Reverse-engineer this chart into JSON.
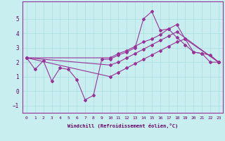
{
  "xlabel": "Windchill (Refroidissement éolien,°C)",
  "bg_color": "#c8eef0",
  "line_color": "#993399",
  "grid_color": "#aadddd",
  "xlim": [
    -0.5,
    23.5
  ],
  "ylim": [
    -1.5,
    6.2
  ],
  "yticks": [
    -1,
    0,
    1,
    2,
    3,
    4,
    5
  ],
  "xticks": [
    0,
    1,
    2,
    3,
    4,
    5,
    6,
    7,
    8,
    9,
    10,
    11,
    12,
    13,
    14,
    15,
    16,
    17,
    18,
    19,
    20,
    21,
    22,
    23
  ],
  "series_main_x": [
    0,
    1,
    2,
    3,
    4,
    5,
    6,
    7,
    8,
    9,
    10,
    11,
    12,
    13,
    14,
    15,
    16,
    17,
    18,
    19,
    20,
    21,
    22,
    23
  ],
  "series_main_y": [
    2.3,
    1.5,
    2.1,
    0.7,
    1.6,
    1.5,
    0.8,
    -0.6,
    -0.3,
    2.2,
    2.2,
    2.5,
    2.7,
    3.0,
    5.0,
    5.5,
    4.2,
    4.3,
    3.7,
    3.2,
    2.7,
    2.6,
    2.0,
    2.0
  ],
  "series_low_x": [
    0,
    10,
    11,
    12,
    13,
    14,
    15,
    16,
    17,
    18,
    19,
    23
  ],
  "series_low_y": [
    2.3,
    1.0,
    1.3,
    1.6,
    1.9,
    2.2,
    2.5,
    2.8,
    3.1,
    3.4,
    3.6,
    2.0
  ],
  "series_mid_x": [
    0,
    10,
    11,
    12,
    13,
    14,
    15,
    16,
    17,
    18,
    23
  ],
  "series_mid_y": [
    2.3,
    1.8,
    2.0,
    2.3,
    2.6,
    2.9,
    3.2,
    3.5,
    3.8,
    4.1,
    2.0
  ],
  "series_high_x": [
    0,
    10,
    11,
    12,
    13,
    14,
    15,
    16,
    17,
    18,
    19,
    20,
    21,
    22,
    23
  ],
  "series_high_y": [
    2.3,
    2.3,
    2.6,
    2.8,
    3.1,
    3.4,
    3.6,
    3.9,
    4.3,
    4.6,
    3.6,
    2.7,
    2.6,
    2.5,
    2.0
  ]
}
